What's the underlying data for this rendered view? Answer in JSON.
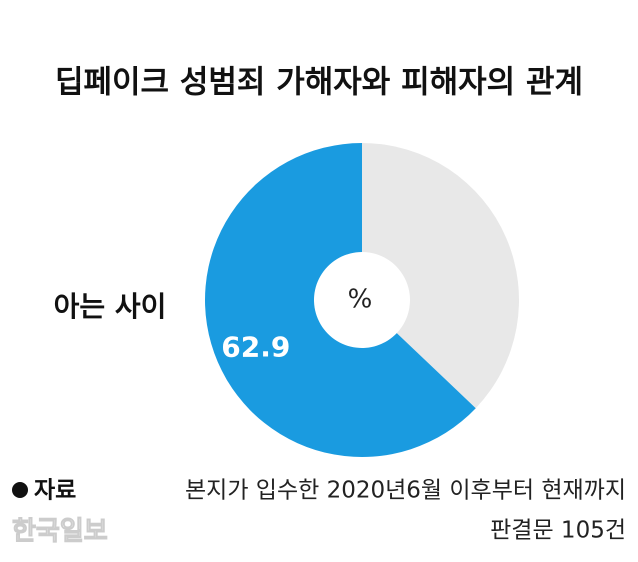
{
  "chart_data": {
    "type": "donut",
    "title": "딥페이크 성범죄 가해자와 피해자의 관계",
    "categories": [
      "아는 사이",
      null
    ],
    "values": [
      62.9,
      37.1
    ],
    "colors": [
      "#1a9be0",
      "#e8e8e8"
    ],
    "center_label": "%",
    "direction": "counterclockwise",
    "source": {
      "label": "자료",
      "lines": [
        "본지가 입수한 2020년6월 이후부터 현재까지",
        "판결문 105건"
      ]
    },
    "watermark": "한국일보"
  }
}
